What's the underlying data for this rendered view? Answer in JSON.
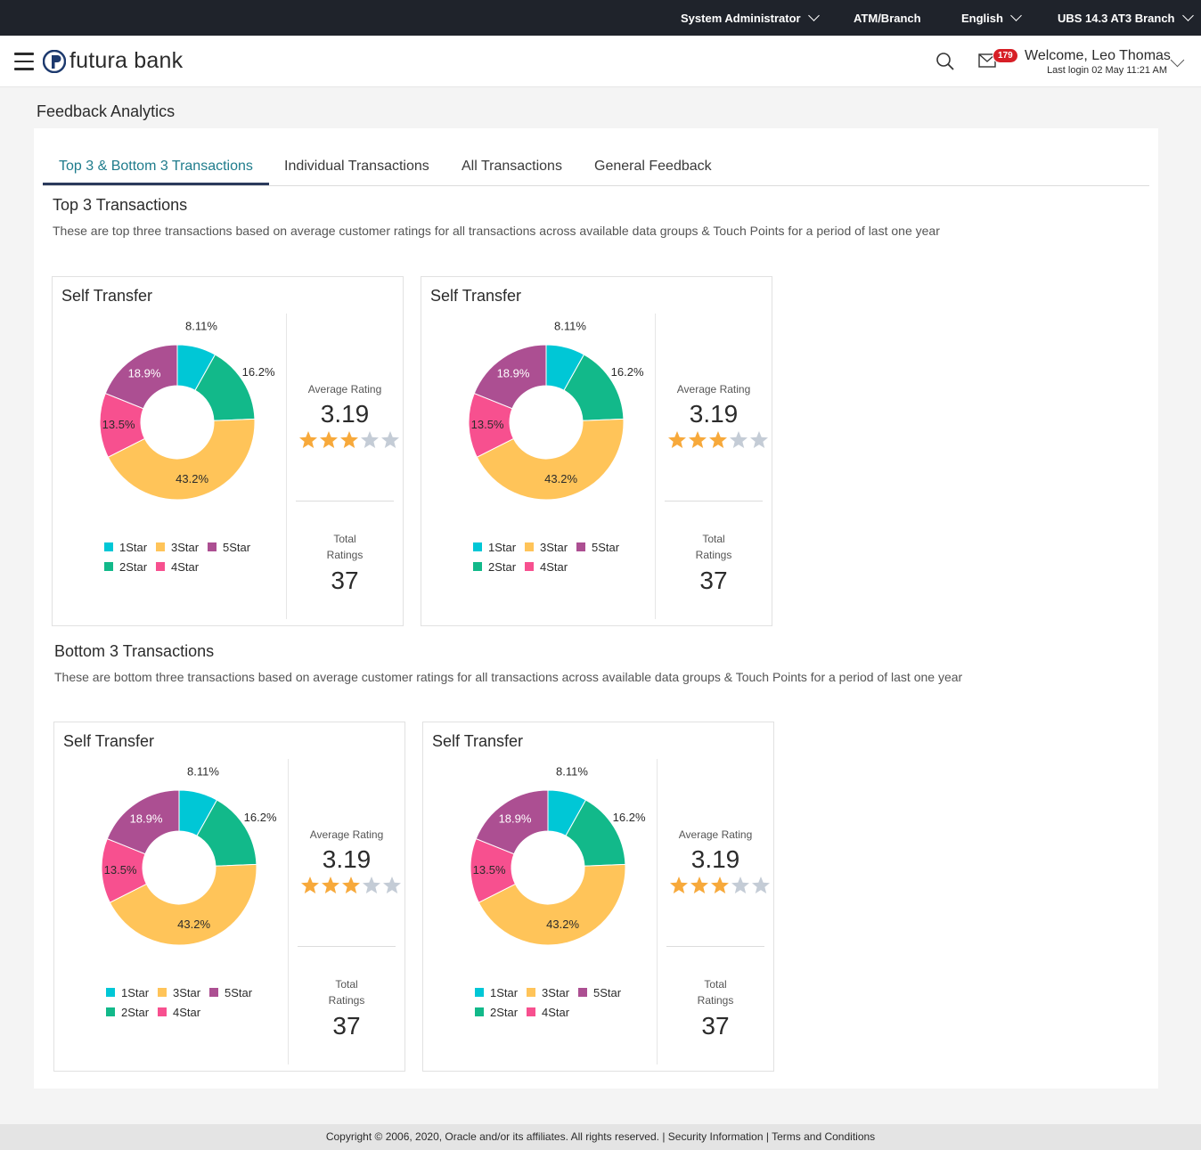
{
  "topbar": {
    "role": "System Administrator",
    "branch_type": "ATM/Branch",
    "language": "English",
    "branch": "UBS 14.3 AT3 Branch"
  },
  "header": {
    "brand": "futura bank",
    "notification_count": "179",
    "welcome": "Welcome, Leo Thomas",
    "last_login": "Last login 02 May 11:21 AM"
  },
  "page": {
    "title": "Feedback Analytics"
  },
  "tabs": [
    {
      "label": "Top 3 & Bottom 3 Transactions"
    },
    {
      "label": "Individual Transactions"
    },
    {
      "label": "All Transactions"
    },
    {
      "label": "General Feedback"
    }
  ],
  "top_section": {
    "title": "Top 3 Transactions",
    "description": "These are top three transactions based on average customer ratings for all transactions across available data groups & Touch Points for a period of last one year"
  },
  "bottom_section": {
    "title": "Bottom 3 Transactions",
    "description": "These are bottom three transactions based on average customer ratings for all transactions across available data groups & Touch Points for a period of last one year"
  },
  "colors": {
    "1Star": "#00c7d6",
    "2Star": "#12b98a",
    "3Star": "#ffc459",
    "4Star": "#f7508f",
    "5Star": "#ac4f92",
    "star_filled": "#f7a93b",
    "star_empty": "#c4ccd6"
  },
  "labels": {
    "average_rating": "Average Rating",
    "total_line1": "Total",
    "total_line2": "Ratings"
  },
  "chart_data": [
    {
      "type": "pie",
      "title": "Self Transfer",
      "categories": [
        "1Star",
        "2Star",
        "3Star",
        "4Star",
        "5Star"
      ],
      "values": [
        8.11,
        16.2,
        43.2,
        13.5,
        18.9
      ],
      "value_labels": [
        "8.11%",
        "16.2%",
        "43.2%",
        "13.5%",
        "18.9%"
      ],
      "average_rating": "3.19",
      "stars_filled": 3,
      "stars_total": 5,
      "total_ratings": "37"
    },
    {
      "type": "pie",
      "title": "Self Transfer",
      "categories": [
        "1Star",
        "2Star",
        "3Star",
        "4Star",
        "5Star"
      ],
      "values": [
        8.11,
        16.2,
        43.2,
        13.5,
        18.9
      ],
      "value_labels": [
        "8.11%",
        "16.2%",
        "43.2%",
        "13.5%",
        "18.9%"
      ],
      "average_rating": "3.19",
      "stars_filled": 3,
      "stars_total": 5,
      "total_ratings": "37"
    },
    {
      "type": "pie",
      "title": "Self Transfer",
      "categories": [
        "1Star",
        "2Star",
        "3Star",
        "4Star",
        "5Star"
      ],
      "values": [
        8.11,
        16.2,
        43.2,
        13.5,
        18.9
      ],
      "value_labels": [
        "8.11%",
        "16.2%",
        "43.2%",
        "13.5%",
        "18.9%"
      ],
      "average_rating": "3.19",
      "stars_filled": 3,
      "stars_total": 5,
      "total_ratings": "37"
    },
    {
      "type": "pie",
      "title": "Self Transfer",
      "categories": [
        "1Star",
        "2Star",
        "3Star",
        "4Star",
        "5Star"
      ],
      "values": [
        8.11,
        16.2,
        43.2,
        13.5,
        18.9
      ],
      "value_labels": [
        "8.11%",
        "16.2%",
        "43.2%",
        "13.5%",
        "18.9%"
      ],
      "average_rating": "3.19",
      "stars_filled": 3,
      "stars_total": 5,
      "total_ratings": "37"
    }
  ],
  "footer": {
    "copyright": "Copyright © 2006, 2020, Oracle and/or its affiliates. All rights reserved.",
    "security": "Security Information",
    "terms": "Terms and Conditions",
    "separator": "|"
  }
}
